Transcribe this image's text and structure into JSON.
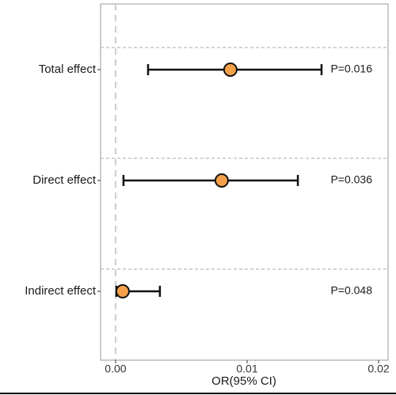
{
  "chart_data": {
    "type": "forest",
    "x_label": "OR(95% CI)",
    "categories": [
      "Total effect",
      "Direct effect",
      "Indirect effect"
    ],
    "values": [
      0.00873,
      0.00807,
      0.00054
    ],
    "lower": [
      0.00247,
      0.0006,
      6e-05
    ],
    "upper": [
      0.01566,
      0.01386,
      0.00337
    ],
    "p_labels": [
      "P=0.016",
      "P=0.036",
      "P=0.048"
    ],
    "color": "#f4a04a",
    "xlim": [
      -0.00114,
      0.02072
    ],
    "xticks": [
      {
        "value": 0,
        "label": "0.00"
      },
      0.01,
      0.02
    ],
    "reference_line": 0
  }
}
